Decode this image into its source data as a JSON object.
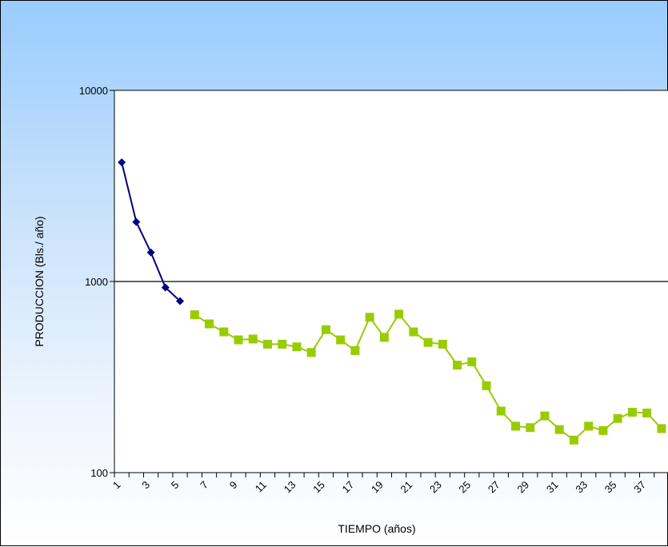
{
  "chart_data": {
    "type": "line",
    "title": "",
    "xlabel": "TIEMPO (años)",
    "ylabel": "PRODUCCION (Bls./ año)",
    "yscale": "log",
    "ylim": [
      100,
      10000
    ],
    "xlim": [
      1,
      39
    ],
    "y_ticks": [
      {
        "value": 100,
        "label": "100"
      },
      {
        "value": 1000,
        "label": "1000"
      },
      {
        "value": 10000,
        "label": "10000"
      }
    ],
    "x_ticks": [
      "1",
      "3",
      "5",
      "7",
      "9",
      "11",
      "13",
      "15",
      "17",
      "19",
      "21",
      "23",
      "25",
      "27",
      "29",
      "31",
      "33",
      "35",
      "37"
    ],
    "gridlines": [
      1000
    ],
    "plot_background": "#ffffff",
    "series": [
      {
        "color": "#000080",
        "marker": "diamond",
        "x": [
          1.5,
          2.5,
          3.5,
          4.5,
          5.5
        ],
        "y": [
          4200,
          2050,
          1420,
          930,
          790
        ]
      },
      {
        "color": "#99cc00",
        "marker": "square",
        "x": [
          6.5,
          7.5,
          8.5,
          9.5,
          10.5,
          11.5,
          12.5,
          13.5,
          14.5,
          15.5,
          16.5,
          17.5,
          18.5,
          19.5,
          20.5,
          21.5,
          22.5,
          23.5,
          24.5,
          25.5,
          26.5,
          27.5,
          28.5,
          29.5,
          30.5,
          31.5,
          32.5,
          33.5,
          34.5,
          35.5,
          36.5,
          37.5,
          38.5
        ],
        "y": [
          670,
          600,
          545,
          495,
          500,
          470,
          470,
          455,
          425,
          560,
          495,
          435,
          650,
          510,
          675,
          545,
          480,
          470,
          365,
          380,
          285,
          210,
          175,
          172,
          198,
          168,
          148,
          175,
          166,
          192,
          207,
          205,
          170
        ]
      }
    ]
  }
}
